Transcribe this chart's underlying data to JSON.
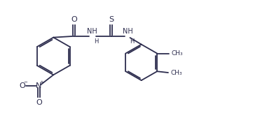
{
  "bg_color": "#ffffff",
  "line_color": "#2d2d4e",
  "text_color": "#2d2d4e",
  "fig_width": 3.61,
  "fig_height": 1.92,
  "dpi": 100,
  "font_size": 7.0,
  "bond_lw": 1.3,
  "xlim": [
    0,
    10
  ],
  "ylim": [
    0,
    5.33
  ]
}
